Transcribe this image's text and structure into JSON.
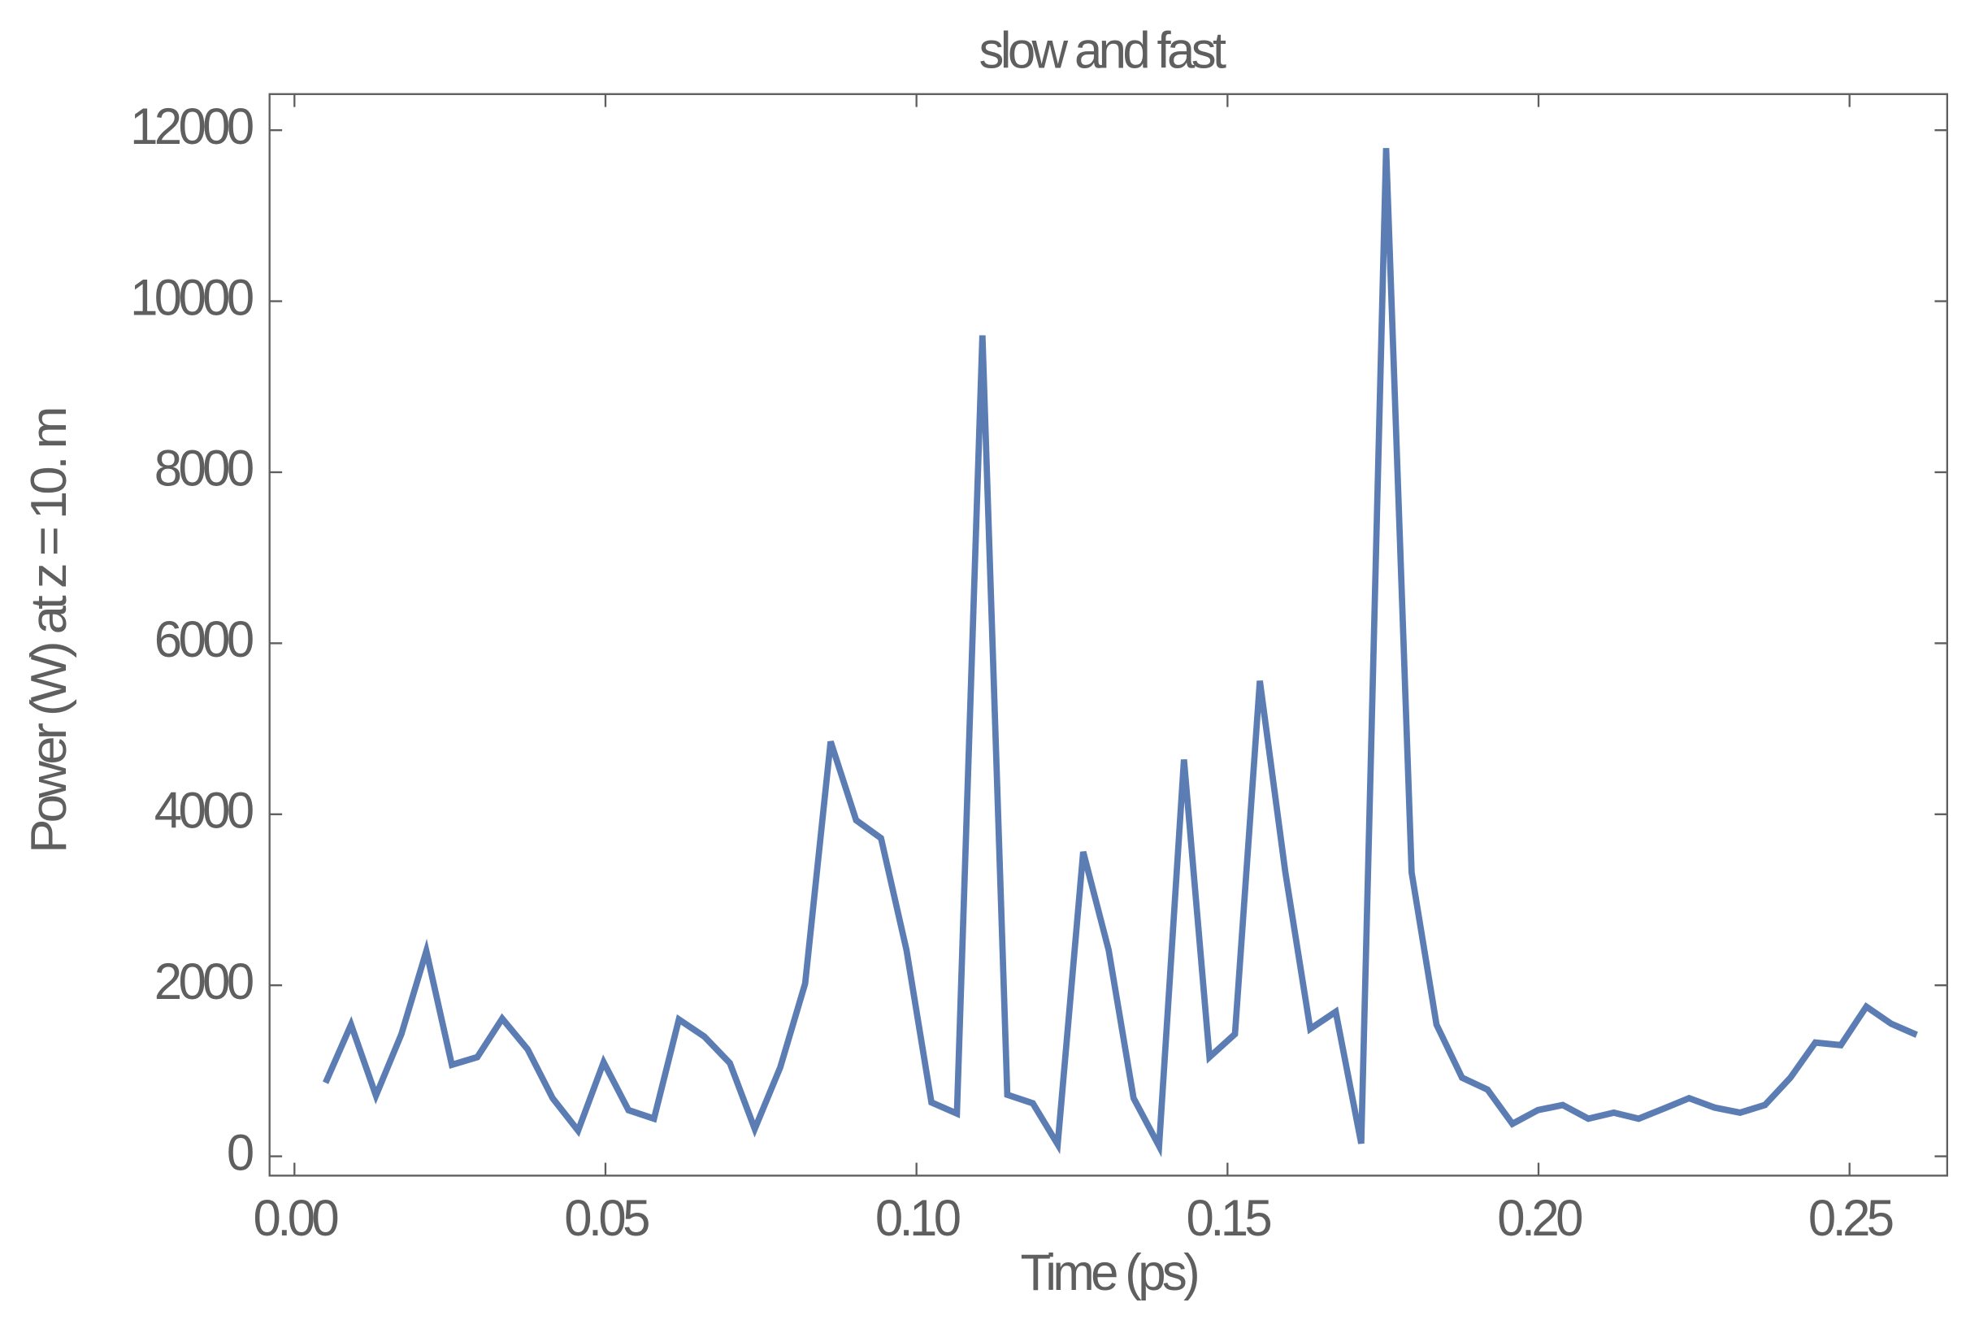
{
  "chart_data": {
    "type": "line",
    "title": "slow and fast",
    "x_label": "Time (ps)",
    "y_label": "Power (W) at z = 10. m",
    "x": [
      0.005,
      0.0091,
      0.0131,
      0.0172,
      0.0212,
      0.0253,
      0.0294,
      0.0334,
      0.0375,
      0.0415,
      0.0456,
      0.0497,
      0.0537,
      0.0578,
      0.0618,
      0.0659,
      0.07,
      0.074,
      0.0781,
      0.0821,
      0.0862,
      0.0903,
      0.0943,
      0.0984,
      0.1024,
      0.1065,
      0.1106,
      0.1146,
      0.1187,
      0.1227,
      0.1268,
      0.1309,
      0.1349,
      0.139,
      0.143,
      0.1471,
      0.1512,
      0.1552,
      0.1593,
      0.1633,
      0.1674,
      0.1715,
      0.1755,
      0.1796,
      0.1836,
      0.1877,
      0.1918,
      0.1958,
      0.1999,
      0.2039,
      0.208,
      0.2121,
      0.2161,
      0.2202,
      0.2242,
      0.2283,
      0.2324,
      0.2364,
      0.2405,
      0.2445,
      0.2486,
      0.2527,
      0.2567,
      0.2608
    ],
    "series": [
      {
        "color": "#5b7db4",
        "values": [
          860,
          1540,
          710,
          1430,
          2400,
          1070,
          1160,
          1610,
          1250,
          680,
          300,
          1100,
          540,
          440,
          1600,
          1400,
          1090,
          320,
          1040,
          2020,
          4850,
          3930,
          3720,
          2410,
          630,
          500,
          9600,
          720,
          620,
          140,
          3560,
          2410,
          680,
          120,
          4640,
          1160,
          1430,
          5560,
          3320,
          1490,
          1690,
          150,
          11790,
          3320,
          1540,
          920,
          780,
          380,
          540,
          600,
          440,
          510,
          440,
          560,
          680,
          570,
          510,
          600,
          920,
          1330,
          1300,
          1750,
          1550,
          1420
        ]
      }
    ],
    "xlim": [
      -0.004,
      0.2657
    ],
    "ylim": [
      -226,
      12422
    ],
    "xticks": [
      {
        "value": 0,
        "label": "0.00"
      },
      {
        "value": 0.05,
        "label": "0.05"
      },
      {
        "value": 0.1,
        "label": "0.10"
      },
      {
        "value": 0.15,
        "label": "0.15"
      },
      {
        "value": 0.2,
        "label": "0.20"
      },
      {
        "value": 0.25,
        "label": "0.25"
      }
    ],
    "yticks": [
      0,
      2000,
      4000,
      6000,
      8000,
      10000,
      12000
    ]
  }
}
